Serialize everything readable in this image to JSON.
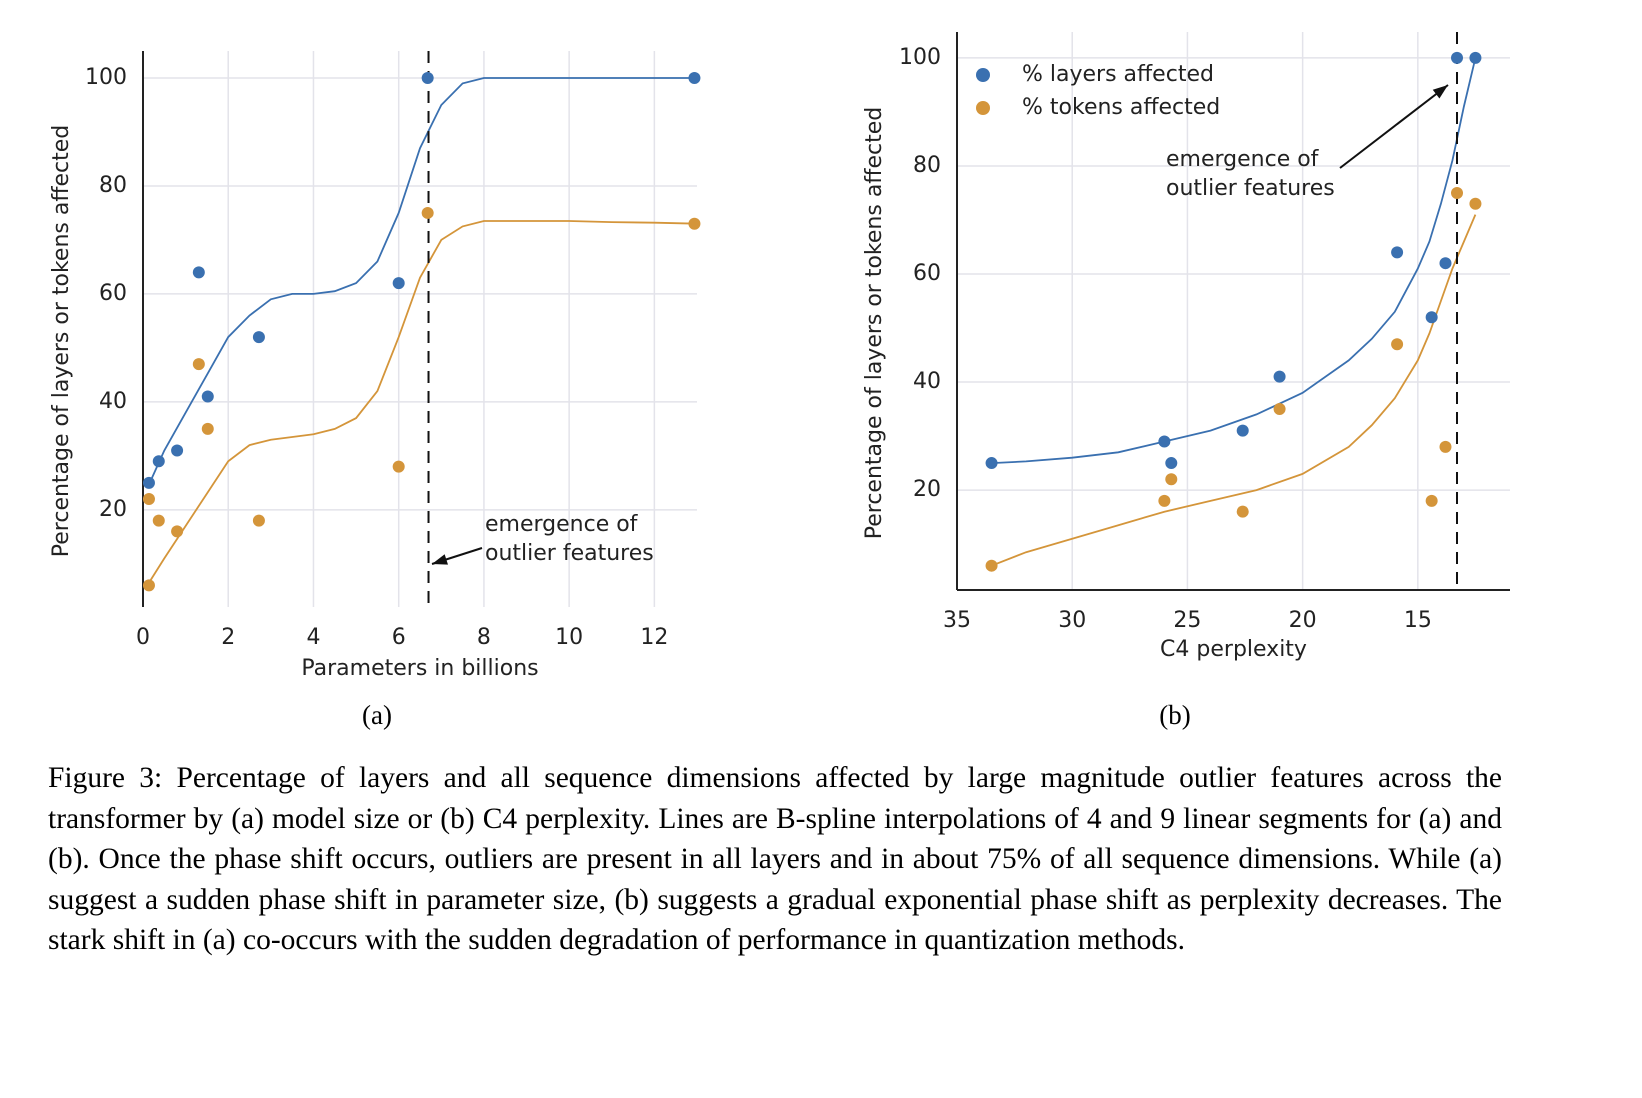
{
  "chart_data": [
    {
      "type": "scatter",
      "subcaption": "(a)",
      "xlabel": "Parameters in billions",
      "ylabel": "Percentage of layers or tokens affected",
      "xlim": [
        0,
        13
      ],
      "ylim": [
        2,
        105
      ],
      "xticks": [
        0,
        2,
        4,
        6,
        8,
        10,
        12
      ],
      "yticks": [
        20,
        40,
        60,
        80,
        100
      ],
      "grid": true,
      "spines": [
        "left"
      ],
      "series": [
        {
          "color": "#3a70b0",
          "x": [
            0.14,
            0.37,
            0.8,
            1.31,
            1.52,
            2.72,
            6.0,
            6.68,
            12.94
          ],
          "values": [
            25,
            29,
            31,
            64,
            41,
            52,
            62,
            100,
            100
          ]
        },
        {
          "color": "#d4953a",
          "x": [
            0.14,
            0.14,
            0.37,
            0.8,
            1.31,
            1.52,
            2.72,
            6.0,
            6.68,
            12.94
          ],
          "values": [
            22,
            6,
            18,
            16,
            47,
            35,
            18,
            28,
            75,
            73
          ]
        }
      ],
      "fits": [
        {
          "color": "#3a70b0",
          "x": [
            0.1,
            0.5,
            1,
            1.5,
            2,
            2.5,
            3,
            3.5,
            4,
            4.5,
            5,
            5.5,
            6,
            6.5,
            7,
            7.5,
            8,
            9,
            10,
            11,
            12,
            13
          ],
          "values": [
            24,
            31,
            38,
            45,
            52,
            56,
            59,
            60,
            60,
            60.5,
            62,
            66,
            75,
            87,
            95,
            99,
            100,
            100,
            100,
            100,
            100,
            100
          ]
        },
        {
          "color": "#d4953a",
          "x": [
            0.1,
            0.5,
            1,
            1.5,
            2,
            2.5,
            3,
            3.5,
            4,
            4.5,
            5,
            5.5,
            6,
            6.5,
            7,
            7.5,
            8,
            9,
            10,
            11,
            12,
            13
          ],
          "values": [
            6,
            11,
            17,
            23,
            29,
            32,
            33,
            33.5,
            34,
            35,
            37,
            42,
            52,
            63,
            70,
            72.5,
            73.5,
            73.5,
            73.5,
            73.3,
            73.2,
            73
          ]
        }
      ],
      "vline": 6.7,
      "annotation": [
        "emergence of",
        "outlier features"
      ]
    },
    {
      "type": "scatter",
      "subcaption": "(b)",
      "xlabel": "C4 perplexity",
      "ylabel": "Percentage of layers or tokens affected",
      "xlim": [
        35,
        11
      ],
      "ylim": [
        1.5,
        104.8
      ],
      "xticks": [
        35,
        30,
        25,
        20,
        15
      ],
      "yticks": [
        20,
        40,
        60,
        80,
        100
      ],
      "grid": true,
      "spines": [
        "left",
        "bottom"
      ],
      "legend": "upper left",
      "series": [
        {
          "name": "% layers affected",
          "color": "#3a70b0",
          "x": [
            33.5,
            26.0,
            25.7,
            22.6,
            21.0,
            15.9,
            14.4,
            13.8,
            13.3,
            12.5
          ],
          "values": [
            25,
            29,
            25,
            31,
            41,
            64,
            52,
            62,
            100,
            100
          ]
        },
        {
          "name": "% tokens affected",
          "color": "#d4953a",
          "x": [
            33.5,
            26.0,
            25.7,
            22.6,
            21.0,
            15.9,
            14.4,
            13.8,
            13.3,
            12.5
          ],
          "values": [
            6,
            18,
            22,
            16,
            35,
            47,
            18,
            28,
            75,
            73
          ]
        }
      ],
      "fits": [
        {
          "color": "#3a70b0",
          "x": [
            33.5,
            32,
            30,
            28,
            26,
            24,
            22,
            20,
            18,
            17,
            16,
            15,
            14.5,
            14,
            13.5,
            13,
            12.5
          ],
          "values": [
            25,
            25.3,
            26,
            27,
            29,
            31,
            34,
            38,
            44,
            48,
            53,
            61,
            66,
            73,
            81,
            91,
            100
          ]
        },
        {
          "color": "#d4953a",
          "x": [
            33.5,
            32,
            30,
            28,
            26,
            24,
            22,
            20,
            18,
            17,
            16,
            15,
            14.5,
            14,
            13.5,
            13,
            12.5
          ],
          "values": [
            6,
            8.5,
            11,
            13.5,
            16,
            18,
            20,
            23,
            28,
            32,
            37,
            44,
            49,
            55,
            61,
            66,
            71
          ]
        }
      ],
      "vline": 13.3,
      "annotation": [
        "emergence of",
        "outlier features"
      ]
    }
  ],
  "figure_caption": "Figure 3: Percentage of layers and all sequence dimensions affected by large magnitude outlier features across the transformer by (a) model size or (b) C4 perplexity. Lines are B-spline interpolations of 4 and 9 linear segments for (a) and (b). Once the phase shift occurs, outliers are present in all layers and in about 75% of all sequence dimensions. While (a) suggest a sudden phase shift in parameter size, (b) suggests a gradual exponential phase shift as perplexity decreases. The stark shift in (a) co-occurs with the sudden degradation of performance in quantization methods."
}
